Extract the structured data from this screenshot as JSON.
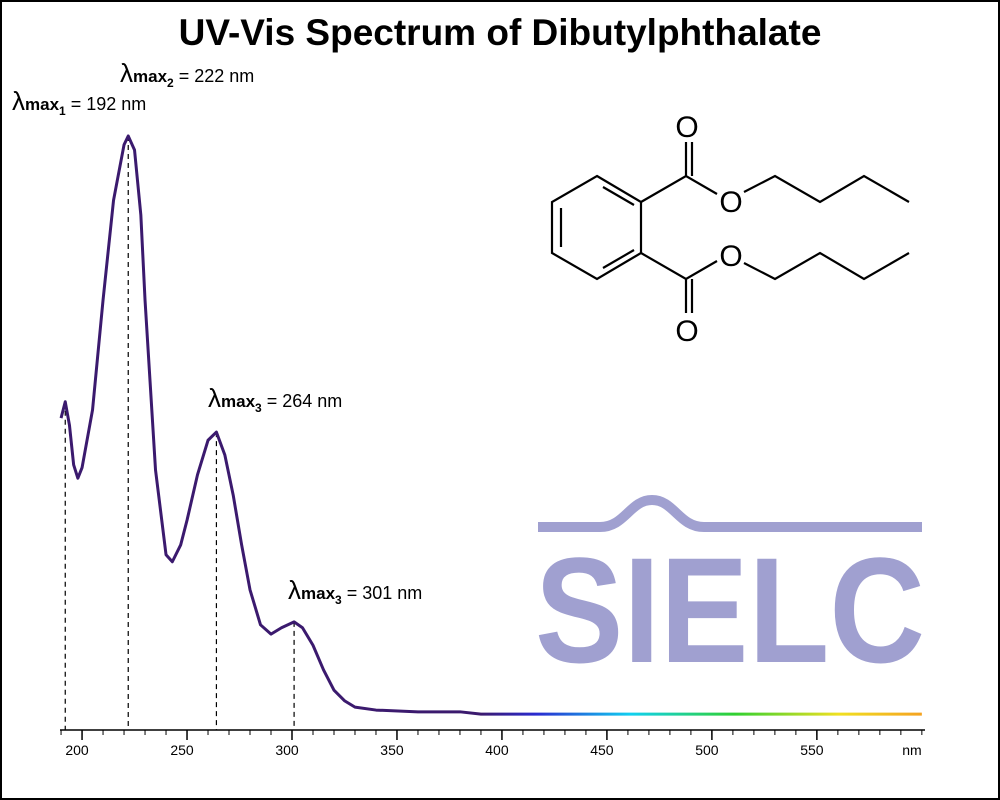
{
  "chart_data": {
    "type": "line",
    "title": "UV-Vis Spectrum of Dibutylphthalate",
    "x": [
      190,
      192,
      194,
      196,
      198,
      200,
      205,
      210,
      215,
      220,
      222,
      225,
      228,
      230,
      235,
      240,
      243,
      247,
      250,
      255,
      260,
      264,
      268,
      272,
      276,
      280,
      285,
      290,
      295,
      301,
      305,
      310,
      315,
      320,
      325,
      330,
      340,
      360,
      380,
      390,
      400,
      600
    ],
    "series": [
      {
        "color": "#3b1a6e",
        "values": [
          0.517,
          0.545,
          0.505,
          0.437,
          0.414,
          0.432,
          0.531,
          0.719,
          0.89,
          0.985,
          1.0,
          0.976,
          0.865,
          0.719,
          0.428,
          0.283,
          0.271,
          0.3,
          0.342,
          0.42,
          0.479,
          0.493,
          0.454,
          0.385,
          0.3,
          0.223,
          0.163,
          0.147,
          0.158,
          0.168,
          0.158,
          0.128,
          0.086,
          0.051,
          0.033,
          0.022,
          0.017,
          0.014,
          0.014,
          0.01,
          0.01,
          0.01
        ]
      }
    ],
    "xlim": [
      189.5,
      601.5
    ],
    "ylim": [
      0,
      1
    ],
    "xticks": [
      200,
      250,
      300,
      350,
      400,
      450,
      500,
      550
    ],
    "xminorticks": [
      190,
      200,
      210,
      220,
      230,
      240,
      250,
      260,
      270,
      280,
      290,
      300,
      310,
      320,
      330,
      340,
      350,
      360,
      370,
      380,
      390,
      400,
      410,
      420,
      430,
      440,
      450,
      460,
      470,
      480,
      490,
      500,
      510,
      520,
      530,
      540,
      550,
      560,
      570,
      580,
      590,
      600
    ],
    "xlabel": "nm",
    "annotations": [
      {
        "symbol": "λ",
        "sub": "max",
        "index": "1",
        "text": "= 192 nm",
        "x": 192
      },
      {
        "symbol": "λ",
        "sub": "max",
        "index": "2",
        "text": "= 222 nm",
        "x": 222
      },
      {
        "symbol": "λ",
        "sub": "max",
        "index": "3",
        "text": "= 264 nm",
        "x": 264
      },
      {
        "symbol": "λ",
        "sub": "max",
        "index": "3",
        "text": "= 301 nm",
        "x": 301
      }
    ],
    "watermark": "SIELC",
    "structure": {
      "atoms": [
        "O",
        "O",
        "O",
        "O"
      ]
    }
  }
}
